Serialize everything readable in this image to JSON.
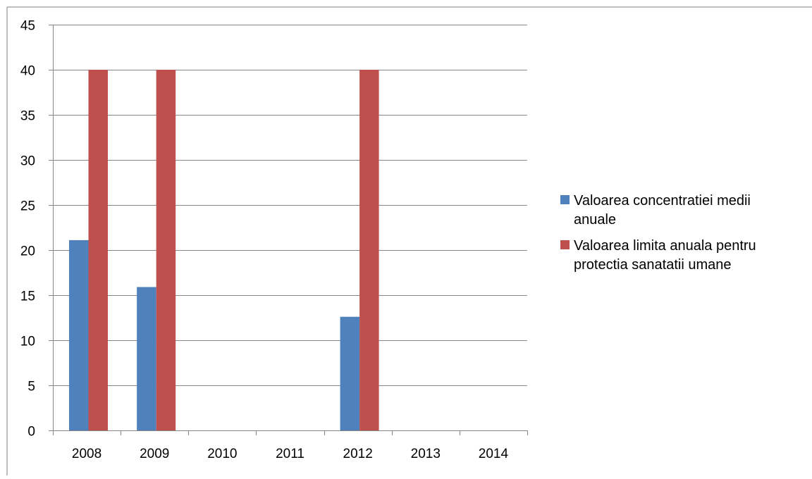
{
  "chart_data": {
    "type": "bar",
    "title": "",
    "xlabel": "",
    "ylabel": "",
    "categories": [
      "2008",
      "2009",
      "2010",
      "2011",
      "2012",
      "2013",
      "2014"
    ],
    "series": [
      {
        "name": "Valoarea concentratiei medii anuale",
        "color": "#4f81bd",
        "values": [
          21.1,
          15.9,
          0,
          0,
          12.6,
          0,
          0
        ]
      },
      {
        "name": "Valoarea limita anuala pentru protectia sanatatii umane",
        "color": "#c0504d",
        "values": [
          40,
          40,
          0,
          0,
          40,
          0,
          0
        ]
      }
    ],
    "ylim": [
      0,
      45
    ],
    "yticks": [
      0,
      5,
      10,
      15,
      20,
      25,
      30,
      35,
      40,
      45
    ],
    "grid": true,
    "legend_position": "right",
    "legend_lines": [
      [
        "Valoarea concentratiei medii",
        "anuale"
      ],
      [
        "Valoarea limita anuala pentru",
        "protectia sanatatii umane"
      ]
    ]
  }
}
